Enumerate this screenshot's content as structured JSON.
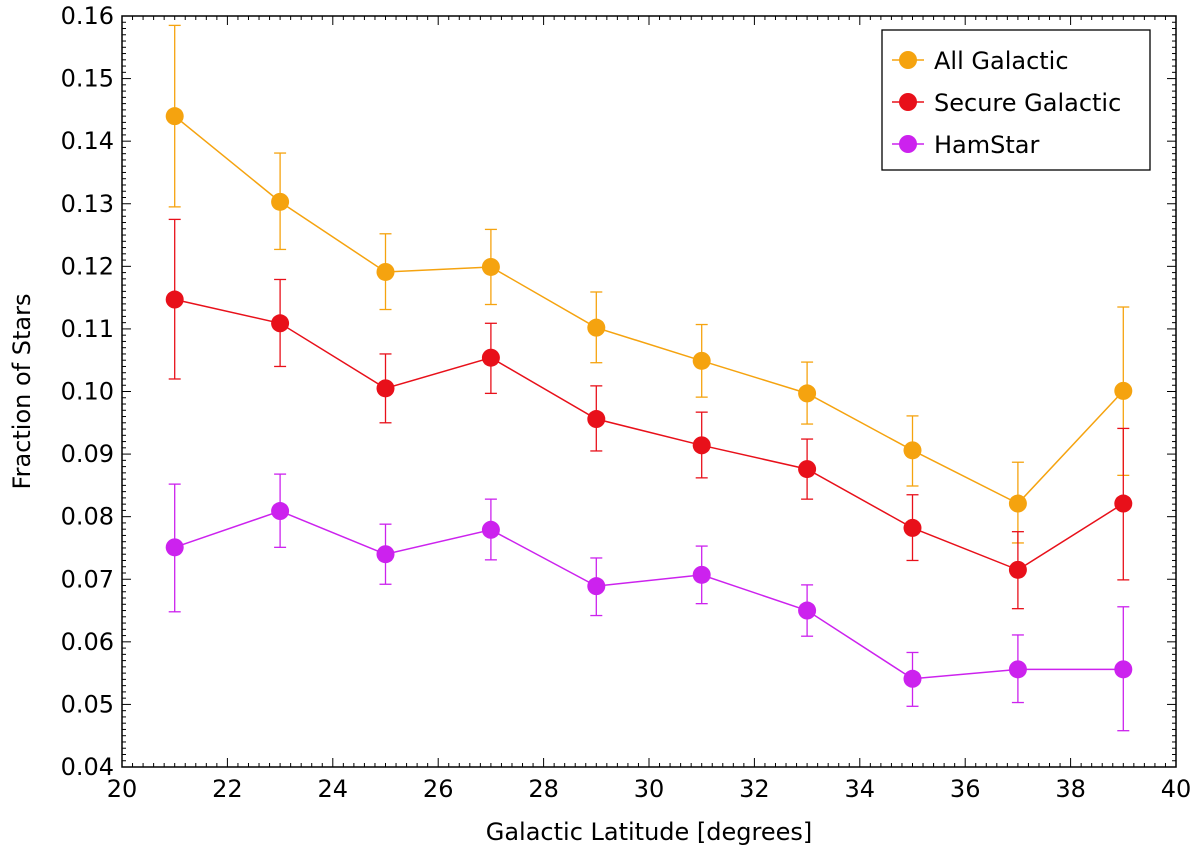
{
  "chart_data": {
    "type": "line",
    "title": "",
    "xlabel": "Galactic Latitude [degrees]",
    "ylabel": "Fraction of Stars",
    "xlim": [
      20,
      40
    ],
    "ylim": [
      0.04,
      0.16
    ],
    "x_ticks": [
      20,
      22,
      24,
      26,
      28,
      30,
      32,
      34,
      36,
      38,
      40
    ],
    "x_tick_labels": [
      "20",
      "22",
      "24",
      "26",
      "28",
      "30",
      "32",
      "34",
      "36",
      "38",
      "40"
    ],
    "y_ticks": [
      0.04,
      0.05,
      0.06,
      0.07,
      0.08,
      0.09,
      0.1,
      0.11,
      0.12,
      0.13,
      0.14,
      0.15,
      0.16
    ],
    "y_tick_labels": [
      "0.04",
      "0.05",
      "0.06",
      "0.07",
      "0.08",
      "0.09",
      "0.10",
      "0.11",
      "0.12",
      "0.13",
      "0.14",
      "0.15",
      "0.16"
    ],
    "grid": false,
    "legend_position": "top-right",
    "x": [
      21,
      23,
      25,
      27,
      29,
      31,
      33,
      35,
      37,
      39
    ],
    "series": [
      {
        "name": "All Galactic",
        "color": "#f5a30f",
        "values": [
          0.144,
          0.1303,
          0.1191,
          0.1199,
          0.1102,
          0.1049,
          0.0997,
          0.0906,
          0.0821,
          0.1001
        ],
        "error_low": [
          0.1295,
          0.1227,
          0.1131,
          0.1139,
          0.1046,
          0.0991,
          0.0948,
          0.0849,
          0.0758,
          0.0866
        ],
        "error_high": [
          0.1585,
          0.1381,
          0.1252,
          0.1259,
          0.1159,
          0.1107,
          0.1047,
          0.0961,
          0.0887,
          0.1135
        ]
      },
      {
        "name": "Secure Galactic",
        "color": "#e8101a",
        "values": [
          0.1147,
          0.1109,
          0.1005,
          0.1054,
          0.0956,
          0.0914,
          0.0876,
          0.0782,
          0.0715,
          0.0821
        ],
        "error_low": [
          0.102,
          0.104,
          0.095,
          0.0997,
          0.0905,
          0.0862,
          0.0828,
          0.073,
          0.0653,
          0.0699
        ],
        "error_high": [
          0.1275,
          0.1179,
          0.106,
          0.1109,
          0.1009,
          0.0967,
          0.0924,
          0.0835,
          0.0776,
          0.0941
        ]
      },
      {
        "name": "HamStar",
        "color": "#cc22ee",
        "values": [
          0.0751,
          0.0809,
          0.074,
          0.0779,
          0.0689,
          0.0707,
          0.065,
          0.0541,
          0.0556,
          0.0556
        ],
        "error_low": [
          0.0648,
          0.0751,
          0.0692,
          0.0731,
          0.0642,
          0.0661,
          0.0609,
          0.0497,
          0.0503,
          0.0458
        ],
        "error_high": [
          0.0852,
          0.0868,
          0.0788,
          0.0828,
          0.0734,
          0.0753,
          0.0691,
          0.0583,
          0.0611,
          0.0656
        ]
      }
    ]
  }
}
